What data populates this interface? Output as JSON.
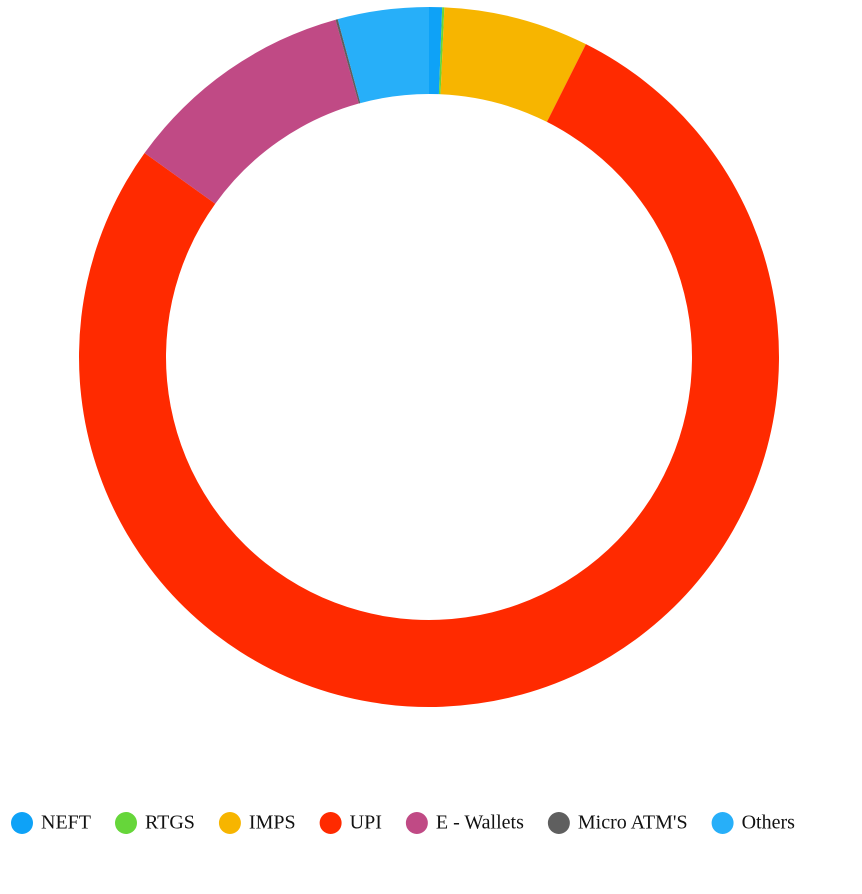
{
  "chart_data": {
    "type": "pie",
    "donut": true,
    "categories": [
      "NEFT",
      "RTGS",
      "IMPS",
      "UPI",
      "E - Wallets",
      "Micro ATM'S",
      "Others"
    ],
    "values": [
      0.6,
      0.1,
      6.7,
      77.5,
      10.8,
      0.1,
      4.2
    ],
    "colors": [
      "#0ea2f7",
      "#66d63a",
      "#f7b500",
      "#ff2a00",
      "#c04a85",
      "#5f5f5f",
      "#27aff9"
    ],
    "legend": "bottom"
  }
}
